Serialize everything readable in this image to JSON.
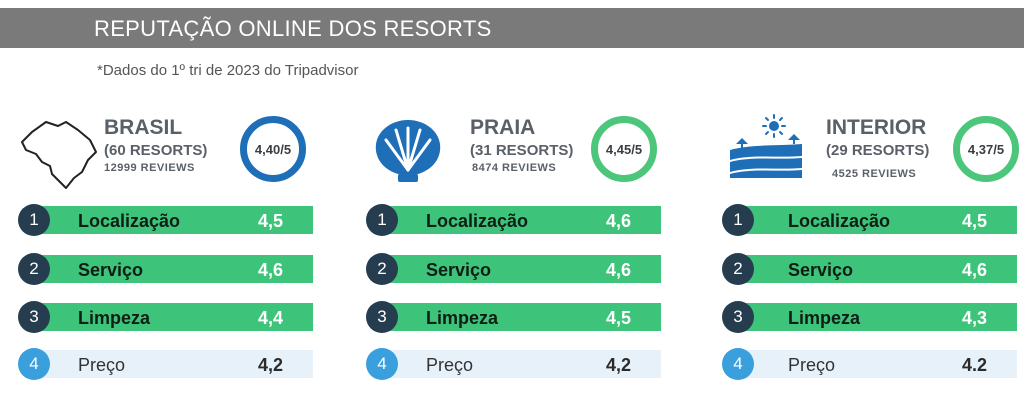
{
  "header": {
    "title": "REPUTAÇÃO ONLINE DOS RESORTS",
    "subtitle": "*Dados do 1º tri de 2023 do Tripadvisor"
  },
  "colors": {
    "header_bg": "#7a7a7a",
    "bar_green": "#3ec47a",
    "bar_light": "#e6f1fa",
    "num_dark": "#263d4f",
    "num_blue": "#3aa0dd",
    "badge_blue": "#1e6fb8",
    "badge_green": "#4cc67b"
  },
  "chart_data": [
    {
      "type": "table",
      "name": "BRASIL",
      "resorts": "(60 RESORTS)",
      "reviews": "12999 REVIEWS",
      "overall": "4,40/5",
      "icon": "brazil-map-icon",
      "categories": [
        "Localização",
        "Serviço",
        "Limpeza",
        "Preço"
      ],
      "ranks": [
        "1",
        "2",
        "3",
        "4"
      ],
      "values": [
        "4,5",
        "4,6",
        "4,4",
        "4,2"
      ]
    },
    {
      "type": "table",
      "name": "PRAIA",
      "resorts": "(31 RESORTS)",
      "reviews": "8474 REVIEWS",
      "overall": "4,45/5",
      "icon": "shell-icon",
      "categories": [
        "Localização",
        "Serviço",
        "Limpeza",
        "Preço"
      ],
      "ranks": [
        "1",
        "2",
        "3",
        "4"
      ],
      "values": [
        "4,6",
        "4,6",
        "4,5",
        "4,2"
      ]
    },
    {
      "type": "table",
      "name": "INTERIOR",
      "resorts": "(29 RESORTS)",
      "reviews": "4525 REVIEWS",
      "overall": "4,37/5",
      "icon": "countryside-icon",
      "categories": [
        "Localização",
        "Serviço",
        "Limpeza",
        "Preço"
      ],
      "ranks": [
        "1",
        "2",
        "3",
        "4"
      ],
      "values": [
        "4,5",
        "4,6",
        "4,3",
        "4.2"
      ]
    }
  ]
}
